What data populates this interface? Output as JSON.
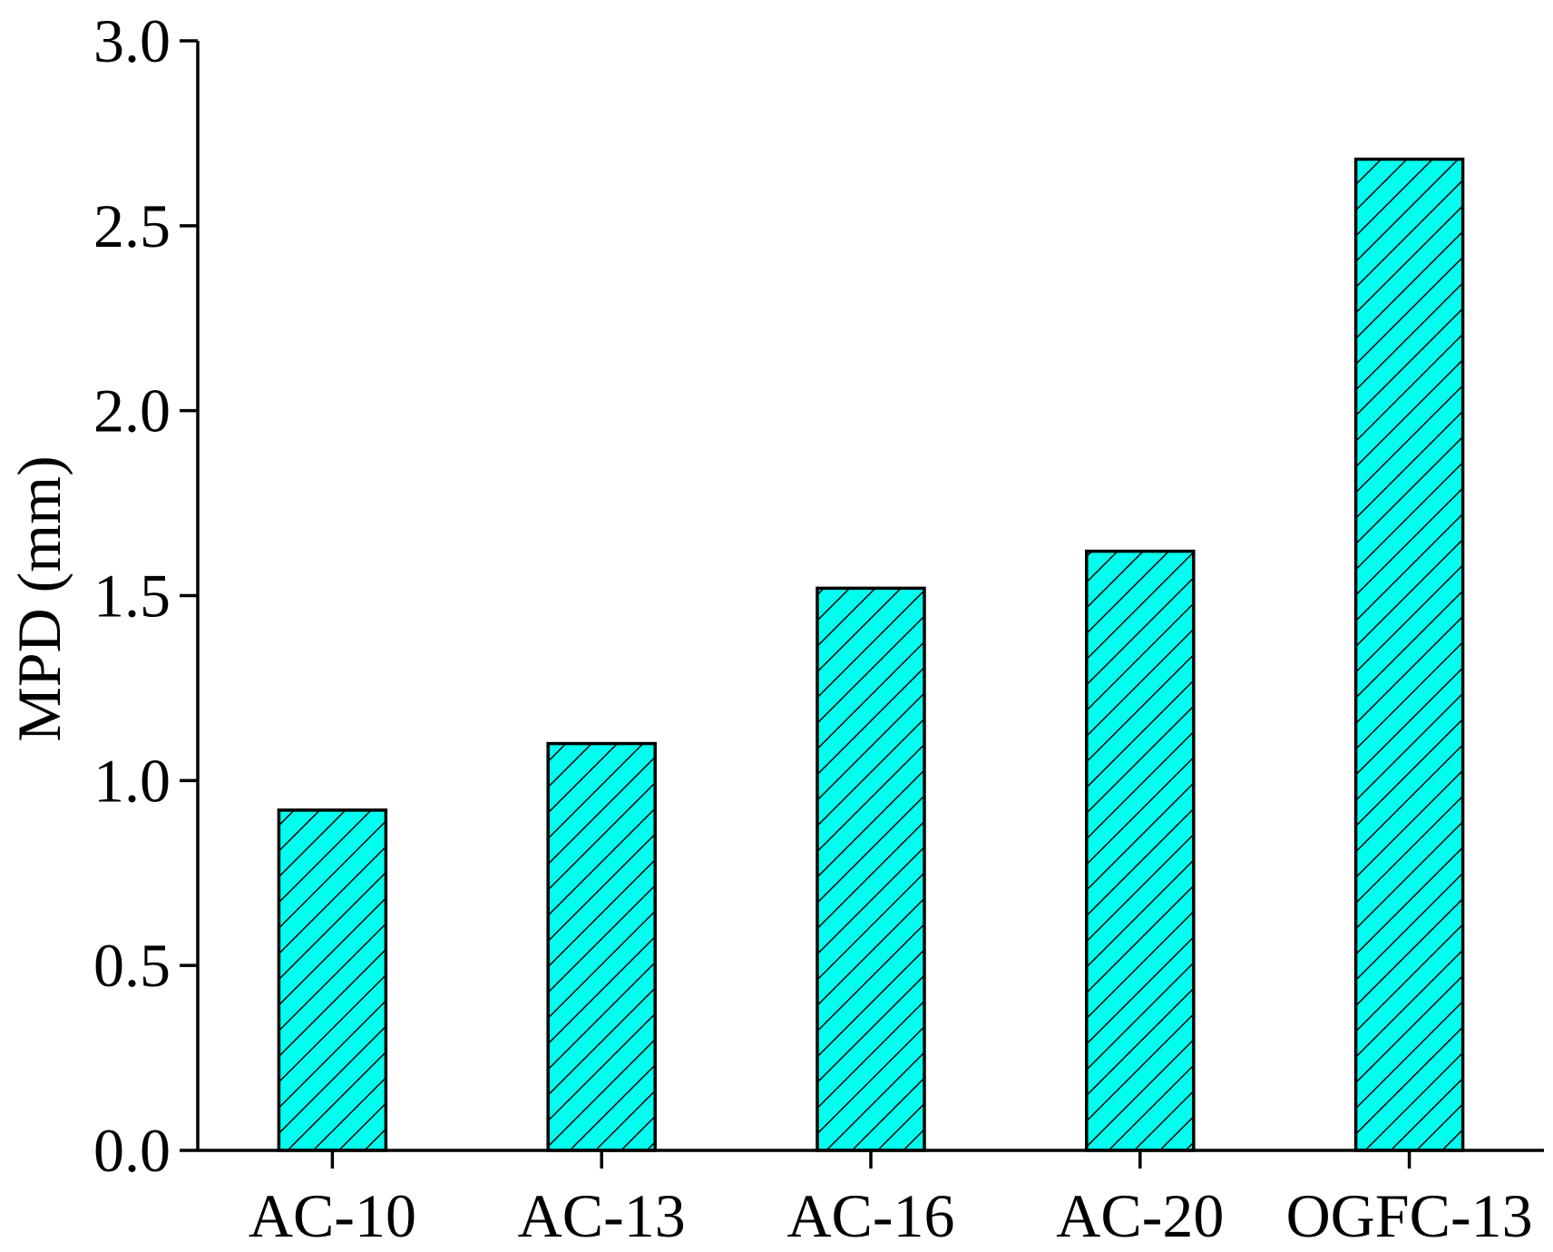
{
  "chart_data": {
    "type": "bar",
    "categories": [
      "AC-10",
      "AC-13",
      "AC-16",
      "AC-20",
      "OGFC-13"
    ],
    "values": [
      0.92,
      1.1,
      1.52,
      1.62,
      2.68
    ],
    "title": "",
    "xlabel": "",
    "ylabel": "MPD (mm)",
    "ylim": [
      0.0,
      3.0
    ],
    "yticks": [
      "0.0",
      "0.5",
      "1.0",
      "1.5",
      "2.0",
      "2.5",
      "3.0"
    ],
    "grid": false,
    "bar_fill": "#00ffee",
    "bar_pattern": "diagonal-hatch",
    "hatch_color": "#000000"
  }
}
